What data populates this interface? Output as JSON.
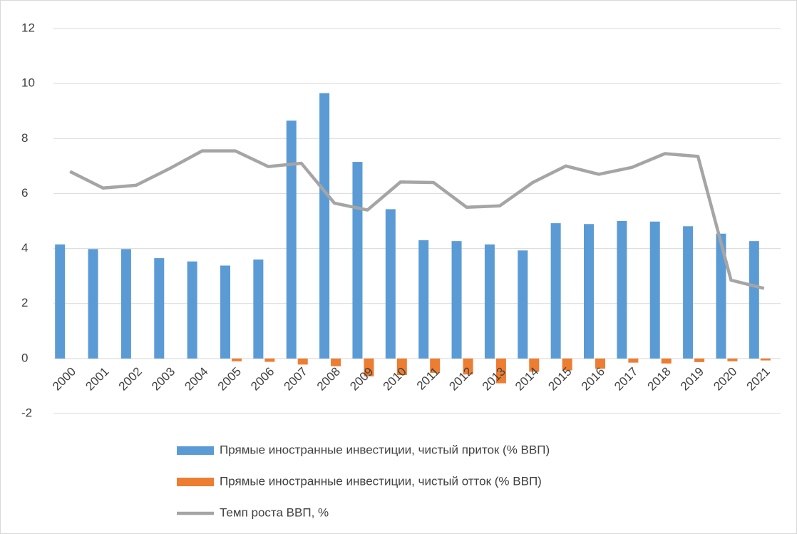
{
  "chart_data": {
    "type": "bar_line",
    "categories": [
      "2000",
      "2001",
      "2002",
      "2003",
      "2004",
      "2005",
      "2006",
      "2007",
      "2008",
      "2009",
      "2010",
      "2011",
      "2012",
      "2013",
      "2014",
      "2015",
      "2016",
      "2017",
      "2018",
      "2019",
      "2020",
      "2021"
    ],
    "series": [
      {
        "name": "Прямые иностранные инвестиции, чистый приток (% ВВП)",
        "type": "bar",
        "color": "#5b9bd5",
        "values": [
          4.15,
          3.98,
          3.98,
          3.65,
          3.53,
          3.38,
          3.6,
          8.65,
          9.65,
          7.15,
          5.43,
          4.3,
          4.27,
          4.15,
          3.93,
          4.92,
          4.89,
          5.0,
          4.98,
          4.81,
          4.54,
          4.27
        ]
      },
      {
        "name": "Прямые иностранные инвестиции, чистый отток (% ВВП)",
        "type": "bar",
        "color": "#ed7d31",
        "values": [
          0,
          0,
          0,
          0,
          0,
          -0.1,
          -0.12,
          -0.22,
          -0.28,
          -0.65,
          -0.6,
          -0.52,
          -0.58,
          -0.9,
          -0.48,
          -0.43,
          -0.37,
          -0.15,
          -0.18,
          -0.13,
          -0.1,
          -0.07
        ]
      },
      {
        "name": "Темп роста ВВП, %",
        "type": "line",
        "color": "#a5a5a5",
        "values": [
          6.8,
          6.2,
          6.3,
          6.9,
          7.55,
          7.55,
          6.98,
          7.1,
          5.65,
          5.4,
          6.42,
          6.4,
          5.5,
          5.55,
          6.4,
          7.0,
          6.7,
          6.95,
          7.45,
          7.35,
          2.85,
          2.55
        ]
      }
    ],
    "ylim": [
      -2,
      12
    ],
    "yticks": [
      -2,
      0,
      2,
      4,
      6,
      8,
      10,
      12
    ],
    "grid": true,
    "legend": "bottom"
  }
}
